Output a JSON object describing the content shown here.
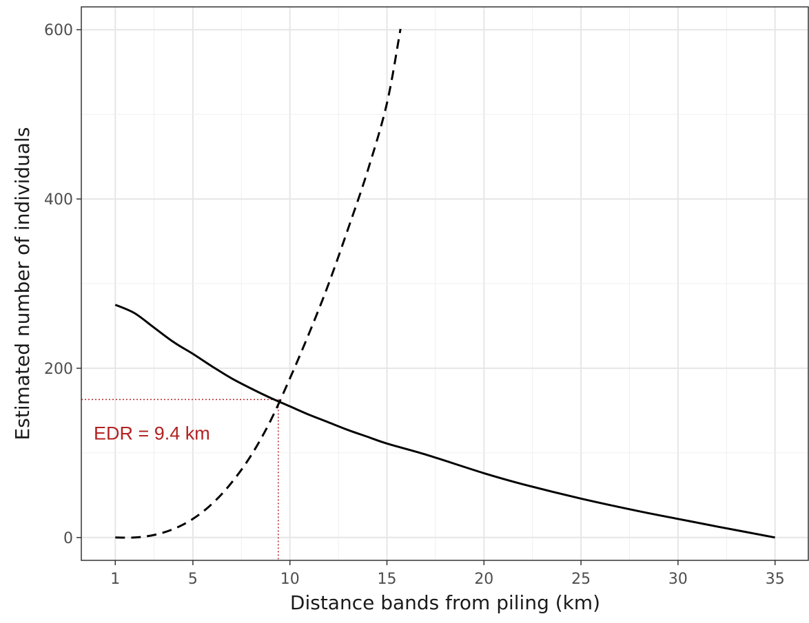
{
  "chart_data": {
    "type": "line",
    "title": "",
    "xlabel": "Distance bands from piling (km)",
    "ylabel": "Estimated number of individuals",
    "xlim": [
      -0.75,
      36.75
    ],
    "ylim": [
      -27,
      627
    ],
    "x_ticks": [
      1,
      5,
      10,
      15,
      20,
      25,
      30,
      35
    ],
    "y_ticks": [
      0,
      200,
      400,
      600
    ],
    "grid": true,
    "series": [
      {
        "style": "solid",
        "color": "#000000",
        "points": [
          [
            1,
            275
          ],
          [
            2,
            265
          ],
          [
            3,
            248
          ],
          [
            4,
            231
          ],
          [
            5,
            217
          ],
          [
            6,
            202
          ],
          [
            7,
            188
          ],
          [
            8,
            176
          ],
          [
            9,
            165
          ],
          [
            10,
            155
          ],
          [
            11,
            145
          ],
          [
            12,
            136
          ],
          [
            13,
            127
          ],
          [
            14,
            119
          ],
          [
            15,
            111
          ],
          [
            17,
            98
          ],
          [
            20,
            76
          ],
          [
            22,
            63
          ],
          [
            25,
            46
          ],
          [
            28,
            31
          ],
          [
            30,
            22
          ],
          [
            32,
            13
          ],
          [
            35,
            0
          ]
        ]
      },
      {
        "style": "dashed",
        "color": "#000000",
        "points": [
          [
            1,
            0
          ],
          [
            2,
            0
          ],
          [
            3,
            3
          ],
          [
            4,
            10
          ],
          [
            5,
            22
          ],
          [
            6,
            40
          ],
          [
            7,
            65
          ],
          [
            8,
            97
          ],
          [
            9,
            138
          ],
          [
            10,
            188
          ],
          [
            11,
            242
          ],
          [
            12,
            300
          ],
          [
            13,
            365
          ],
          [
            14,
            433
          ],
          [
            15,
            513
          ],
          [
            15.7,
            601
          ]
        ]
      }
    ],
    "annotations": [
      {
        "text": "EDR = 9.4 km",
        "x": 9.4,
        "y": 163,
        "color": "#b22222",
        "style": "dotted"
      }
    ]
  }
}
